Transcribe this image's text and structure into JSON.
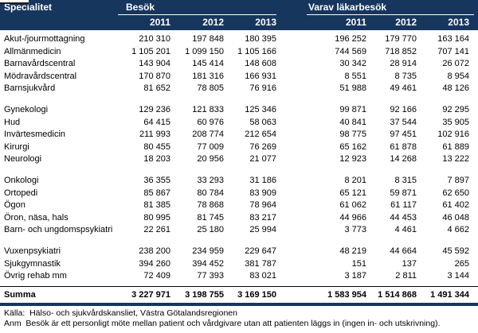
{
  "header": {
    "specialitet": "Specialitet",
    "besok_group": "Besök",
    "varav_group": "Varav läkarbesök",
    "besok_years": [
      "2011",
      "2012",
      "2013"
    ],
    "varav_years": [
      "2011",
      "2012",
      "2013"
    ]
  },
  "sections": [
    {
      "rows": [
        {
          "label": "Akut-/jourmottagning",
          "besok": [
            "210 310",
            "197 848",
            "180 395"
          ],
          "lakarbesok": [
            "196 252",
            "179 770",
            "163 164"
          ]
        },
        {
          "label": "Allmänmedicin",
          "besok": [
            "1 105 201",
            "1 099 150",
            "1 105 166"
          ],
          "lakarbesok": [
            "744 569",
            "718 852",
            "707 141"
          ]
        },
        {
          "label": "Barnavårdscentral",
          "besok": [
            "143 904",
            "145 414",
            "148 608"
          ],
          "lakarbesok": [
            "30 342",
            "28 914",
            "26 072"
          ]
        },
        {
          "label": "Mödravårdscentral",
          "besok": [
            "170 870",
            "181 316",
            "166 931"
          ],
          "lakarbesok": [
            "8 551",
            "8 735",
            "8 954"
          ]
        },
        {
          "label": "Barnsjukvård",
          "besok": [
            "81 652",
            "78 805",
            "76 916"
          ],
          "lakarbesok": [
            "51 988",
            "49 461",
            "48 126"
          ]
        }
      ]
    },
    {
      "rows": [
        {
          "label": "Gynekologi",
          "besok": [
            "129 236",
            "121 833",
            "125 346"
          ],
          "lakarbesok": [
            "99 871",
            "92 166",
            "92 295"
          ]
        },
        {
          "label": "Hud",
          "besok": [
            "64 415",
            "60 976",
            "58 063"
          ],
          "lakarbesok": [
            "40 841",
            "37 544",
            "35 905"
          ]
        },
        {
          "label": "Invärtesmedicin",
          "besok": [
            "211 993",
            "208 774",
            "212 654"
          ],
          "lakarbesok": [
            "98 775",
            "97 451",
            "102 916"
          ]
        },
        {
          "label": "Kirurgi",
          "besok": [
            "80 455",
            "77 009",
            "76 269"
          ],
          "lakarbesok": [
            "65 162",
            "61 878",
            "61 889"
          ]
        },
        {
          "label": "Neurologi",
          "besok": [
            "18 203",
            "20 956",
            "21 077"
          ],
          "lakarbesok": [
            "12 923",
            "14 268",
            "13 222"
          ]
        }
      ]
    },
    {
      "rows": [
        {
          "label": "Onkologi",
          "besok": [
            "36 355",
            "33 293",
            "31 186"
          ],
          "lakarbesok": [
            "8 201",
            "8 315",
            "7 897"
          ]
        },
        {
          "label": "Ortopedi",
          "besok": [
            "85 867",
            "80 784",
            "83 909"
          ],
          "lakarbesok": [
            "65 121",
            "59 871",
            "62 650"
          ]
        },
        {
          "label": "Ögon",
          "besok": [
            "81 385",
            "78 868",
            "78 964"
          ],
          "lakarbesok": [
            "61 062",
            "61 117",
            "61 402"
          ]
        },
        {
          "label": "Öron, näsa, hals",
          "besok": [
            "80 995",
            "81 745",
            "83 217"
          ],
          "lakarbesok": [
            "44 966",
            "44 453",
            "46 048"
          ]
        },
        {
          "label": "Barn- och ungdomspsykiatri",
          "besok": [
            "22 261",
            "25 180",
            "25 994"
          ],
          "lakarbesok": [
            "3 773",
            "4 461",
            "4 662"
          ]
        }
      ]
    },
    {
      "rows": [
        {
          "label": "Vuxenpsykiatri",
          "besok": [
            "238 200",
            "234 959",
            "229 647"
          ],
          "lakarbesok": [
            "48 219",
            "44 664",
            "45 592"
          ]
        },
        {
          "label": "Sjukgymnastik",
          "besok": [
            "394 260",
            "394 452",
            "381 787"
          ],
          "lakarbesok": [
            "151",
            "137",
            "265"
          ]
        },
        {
          "label": "Övrig rehab mm",
          "besok": [
            "72 409",
            "77 393",
            "83 021"
          ],
          "lakarbesok": [
            "3 187",
            "2 811",
            "3 144"
          ]
        }
      ]
    }
  ],
  "summa": {
    "label": "Summa",
    "besok": [
      "3 227 971",
      "3 198 755",
      "3 169 150"
    ],
    "lakarbesok": [
      "1 583 954",
      "1 514 868",
      "1 491 344"
    ]
  },
  "footer": {
    "kalla": "Källa:  Hälso- och sjukvårdskansliet, Västra Götalandsregionen",
    "anm": "Anm  Besök är ett personligt möte mellan patient och vårdgivare utan att patienten läggs in (ingen in- och utskrivning)."
  },
  "colors": {
    "header_bg": "#17365D",
    "header_text": "#FFFFFF",
    "body_text": "#000000",
    "rule": "#17365D"
  }
}
